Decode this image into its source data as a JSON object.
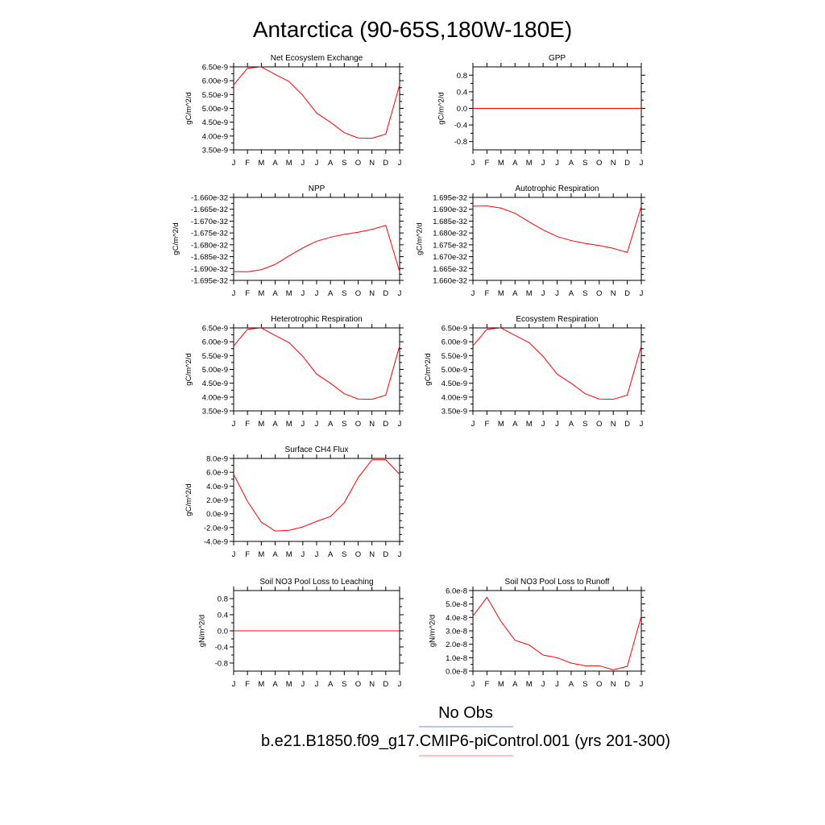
{
  "figure": {
    "title": "Antarctica (90-65S,180W-180E)",
    "line_color": "#ff0000",
    "obs_color": "#8080ff"
  },
  "legend": {
    "obs_label": "No Obs",
    "model_label": "b.e21.B1850.f09_g17.CMIP6-piControl.001 (yrs 201-300)"
  },
  "chart_data": [
    {
      "type": "line",
      "title": "Net Ecosystem Exchange",
      "ylabel": "gC/m^2/d",
      "categories": [
        "J",
        "F",
        "M",
        "A",
        "M",
        "J",
        "J",
        "A",
        "S",
        "O",
        "N",
        "D",
        "J"
      ],
      "values": [
        5.85e-09,
        6.45e-09,
        6.5e-09,
        6.23e-09,
        5.97e-09,
        5.47e-09,
        4.83e-09,
        4.5e-09,
        4.12e-09,
        3.93e-09,
        3.92e-09,
        4.07e-09,
        5.85e-09
      ],
      "ylim": [
        3.5e-09,
        6.5e-09
      ],
      "yticks": [
        "6.50e-9",
        "6.00e-9",
        "5.50e-9",
        "5.00e-9",
        "4.50e-9",
        "4.00e-9",
        "3.50e-9"
      ],
      "ytick_values": [
        6.5e-09,
        6e-09,
        5.5e-09,
        5e-09,
        4.5e-09,
        4e-09,
        3.5e-09
      ]
    },
    {
      "type": "line",
      "title": "GPP",
      "ylabel": "gC/m^2/d",
      "categories": [
        "J",
        "F",
        "M",
        "A",
        "M",
        "J",
        "J",
        "A",
        "S",
        "O",
        "N",
        "D",
        "J"
      ],
      "values": [
        0,
        0,
        0,
        0,
        0,
        0,
        0,
        0,
        0,
        0,
        0,
        0,
        0
      ],
      "ylim": [
        -1.0,
        1.0
      ],
      "yticks": [
        "0.8",
        "0.4",
        "0.0",
        "-0.4",
        "-0.8"
      ],
      "ytick_values": [
        0.8,
        0.4,
        0.0,
        -0.4,
        -0.8
      ]
    },
    {
      "type": "line",
      "title": "NPP",
      "ylabel": "gC/m^2/d",
      "categories": [
        "J",
        "F",
        "M",
        "A",
        "M",
        "J",
        "J",
        "A",
        "S",
        "O",
        "N",
        "D",
        "J"
      ],
      "values": [
        -1.6913e-32,
        -1.6914e-32,
        -1.6905e-32,
        -1.6883e-32,
        -1.6847e-32,
        -1.6813e-32,
        -1.6785e-32,
        -1.6768e-32,
        -1.6756e-32,
        -1.6747e-32,
        -1.6735e-32,
        -1.6718e-32,
        -1.6913e-32
      ],
      "ylim": [
        -1.695e-32,
        -1.66e-32
      ],
      "yticks": [
        "-1.660e-32",
        "-1.665e-32",
        "-1.670e-32",
        "-1.675e-32",
        "-1.680e-32",
        "-1.685e-32",
        "-1.690e-32",
        "-1.695e-32"
      ],
      "ytick_values": [
        -1.66e-32,
        -1.665e-32,
        -1.67e-32,
        -1.675e-32,
        -1.68e-32,
        -1.685e-32,
        -1.69e-32,
        -1.695e-32
      ]
    },
    {
      "type": "line",
      "title": "Autotrophic Respiration",
      "ylabel": "gC/m^2/d",
      "categories": [
        "J",
        "F",
        "M",
        "A",
        "M",
        "J",
        "J",
        "A",
        "S",
        "O",
        "N",
        "D",
        "J"
      ],
      "values": [
        1.6913e-32,
        1.6914e-32,
        1.6905e-32,
        1.6883e-32,
        1.6847e-32,
        1.6813e-32,
        1.6785e-32,
        1.6768e-32,
        1.6756e-32,
        1.6747e-32,
        1.6735e-32,
        1.6718e-32,
        1.6913e-32
      ],
      "ylim": [
        1.66e-32,
        1.695e-32
      ],
      "yticks": [
        "1.695e-32",
        "1.690e-32",
        "1.685e-32",
        "1.680e-32",
        "1.675e-32",
        "1.670e-32",
        "1.665e-32",
        "1.660e-32"
      ],
      "ytick_values": [
        1.695e-32,
        1.69e-32,
        1.685e-32,
        1.68e-32,
        1.675e-32,
        1.67e-32,
        1.665e-32,
        1.66e-32
      ]
    },
    {
      "type": "line",
      "title": "Heterotrophic Respiration",
      "ylabel": "gC/m^2/d",
      "categories": [
        "J",
        "F",
        "M",
        "A",
        "M",
        "J",
        "J",
        "A",
        "S",
        "O",
        "N",
        "D",
        "J"
      ],
      "values": [
        5.85e-09,
        6.45e-09,
        6.5e-09,
        6.23e-09,
        5.97e-09,
        5.47e-09,
        4.83e-09,
        4.5e-09,
        4.12e-09,
        3.93e-09,
        3.92e-09,
        4.07e-09,
        5.85e-09
      ],
      "ylim": [
        3.5e-09,
        6.5e-09
      ],
      "yticks": [
        "6.50e-9",
        "6.00e-9",
        "5.50e-9",
        "5.00e-9",
        "4.50e-9",
        "4.00e-9",
        "3.50e-9"
      ],
      "ytick_values": [
        6.5e-09,
        6e-09,
        5.5e-09,
        5e-09,
        4.5e-09,
        4e-09,
        3.5e-09
      ]
    },
    {
      "type": "line",
      "title": "Ecosystem Respiration",
      "ylabel": "gC/m^2/d",
      "categories": [
        "J",
        "F",
        "M",
        "A",
        "M",
        "J",
        "J",
        "A",
        "S",
        "O",
        "N",
        "D",
        "J"
      ],
      "values": [
        5.85e-09,
        6.45e-09,
        6.5e-09,
        6.23e-09,
        5.97e-09,
        5.47e-09,
        4.83e-09,
        4.5e-09,
        4.12e-09,
        3.93e-09,
        3.92e-09,
        4.07e-09,
        5.85e-09
      ],
      "ylim": [
        3.5e-09,
        6.5e-09
      ],
      "yticks": [
        "6.50e-9",
        "6.00e-9",
        "5.50e-9",
        "5.00e-9",
        "4.50e-9",
        "4.00e-9",
        "3.50e-9"
      ],
      "ytick_values": [
        6.5e-09,
        6e-09,
        5.5e-09,
        5e-09,
        4.5e-09,
        4e-09,
        3.5e-09
      ]
    },
    {
      "type": "line",
      "title": "Surface CH4 Flux",
      "ylabel": "gC/m^2/d",
      "categories": [
        "J",
        "F",
        "M",
        "A",
        "M",
        "J",
        "J",
        "A",
        "S",
        "O",
        "N",
        "D",
        "J"
      ],
      "values": [
        5.7e-09,
        1.8e-09,
        -1.2e-09,
        -2.5e-09,
        -2.4e-09,
        -1.9e-09,
        -1.1e-09,
        -4e-10,
        1.6e-09,
        5.2e-09,
        7.8e-09,
        7.8e-09,
        5.7e-09
      ],
      "ylim": [
        -4e-09,
        8e-09
      ],
      "yticks": [
        "8.0e-9",
        "6.0e-9",
        "4.0e-9",
        "2.0e-9",
        "0.0e-9",
        "-2.0e-9",
        "-4.0e-9"
      ],
      "ytick_values": [
        8e-09,
        6e-09,
        4e-09,
        2e-09,
        0.0,
        -2e-09,
        -4e-09
      ]
    },
    {
      "type": "line",
      "title": "Soil NO3 Pool Loss to Leaching",
      "ylabel": "gN/m^2/d",
      "categories": [
        "J",
        "F",
        "M",
        "A",
        "M",
        "J",
        "J",
        "A",
        "S",
        "O",
        "N",
        "D",
        "J"
      ],
      "values": [
        0,
        0,
        0,
        0,
        0,
        0,
        0,
        0,
        0,
        0,
        0,
        0,
        0
      ],
      "ylim": [
        -1.0,
        1.0
      ],
      "yticks": [
        "0.8",
        "0.4",
        "0.0",
        "-0.4",
        "-0.8"
      ],
      "ytick_values": [
        0.8,
        0.4,
        0.0,
        -0.4,
        -0.8
      ]
    },
    {
      "type": "line",
      "title": "Soil NO3 Pool Loss to Runoff",
      "ylabel": "gN/m^2/d",
      "categories": [
        "J",
        "F",
        "M",
        "A",
        "M",
        "J",
        "J",
        "A",
        "S",
        "O",
        "N",
        "D",
        "J"
      ],
      "values": [
        4.1e-08,
        5.5e-08,
        3.7e-08,
        2.3e-08,
        1.95e-08,
        1.2e-08,
        1e-08,
        6e-09,
        4e-09,
        4e-09,
        1e-09,
        3.5e-09,
        4.1e-08
      ],
      "ylim": [
        0.0,
        6e-08
      ],
      "yticks": [
        "6.0e-8",
        "5.0e-8",
        "4.0e-8",
        "3.0e-8",
        "2.0e-8",
        "1.0e-8",
        "0.0e-8"
      ],
      "ytick_values": [
        6e-08,
        5e-08,
        4e-08,
        3e-08,
        2e-08,
        1e-08,
        0.0
      ]
    }
  ]
}
